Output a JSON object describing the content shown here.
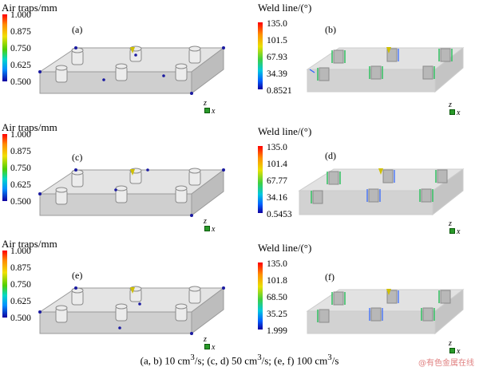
{
  "air_title": "Air traps/mm",
  "weld_title": "Weld line/(°)",
  "panels": [
    {
      "label": "(a)",
      "ticks": [
        "1.000",
        "0.875",
        "0.750",
        "0.625",
        "0.500"
      ]
    },
    {
      "label": "(b)",
      "ticks": [
        "135.0",
        "101.5",
        "67.93",
        "34.39",
        "0.8521"
      ]
    },
    {
      "label": "(c)",
      "ticks": [
        "1.000",
        "0.875",
        "0.750",
        "0.625",
        "0.500"
      ]
    },
    {
      "label": "(d)",
      "ticks": [
        "135.0",
        "101.4",
        "67.77",
        "34.16",
        "0.5453"
      ]
    },
    {
      "label": "(e)",
      "ticks": [
        "1.000",
        "0.875",
        "0.750",
        "0.625",
        "0.500"
      ]
    },
    {
      "label": "(f)",
      "ticks": [
        "135.0",
        "101.8",
        "68.50",
        "35.25",
        "1.999"
      ]
    }
  ],
  "axis": {
    "z": "z",
    "x": "x"
  },
  "caption_parts": [
    "(a, b) 10 cm",
    "3",
    "/s; (c, d) 50 cm",
    "3",
    "/s; (e, f) 100 cm",
    "3",
    "/s"
  ],
  "watermark": "@有色金属在线",
  "colors": {
    "slab_fill": "#d8d8d8",
    "slab_edge": "#9a9a9a",
    "air_trap": "#1a1aa0",
    "weld_line": "#30c060"
  }
}
